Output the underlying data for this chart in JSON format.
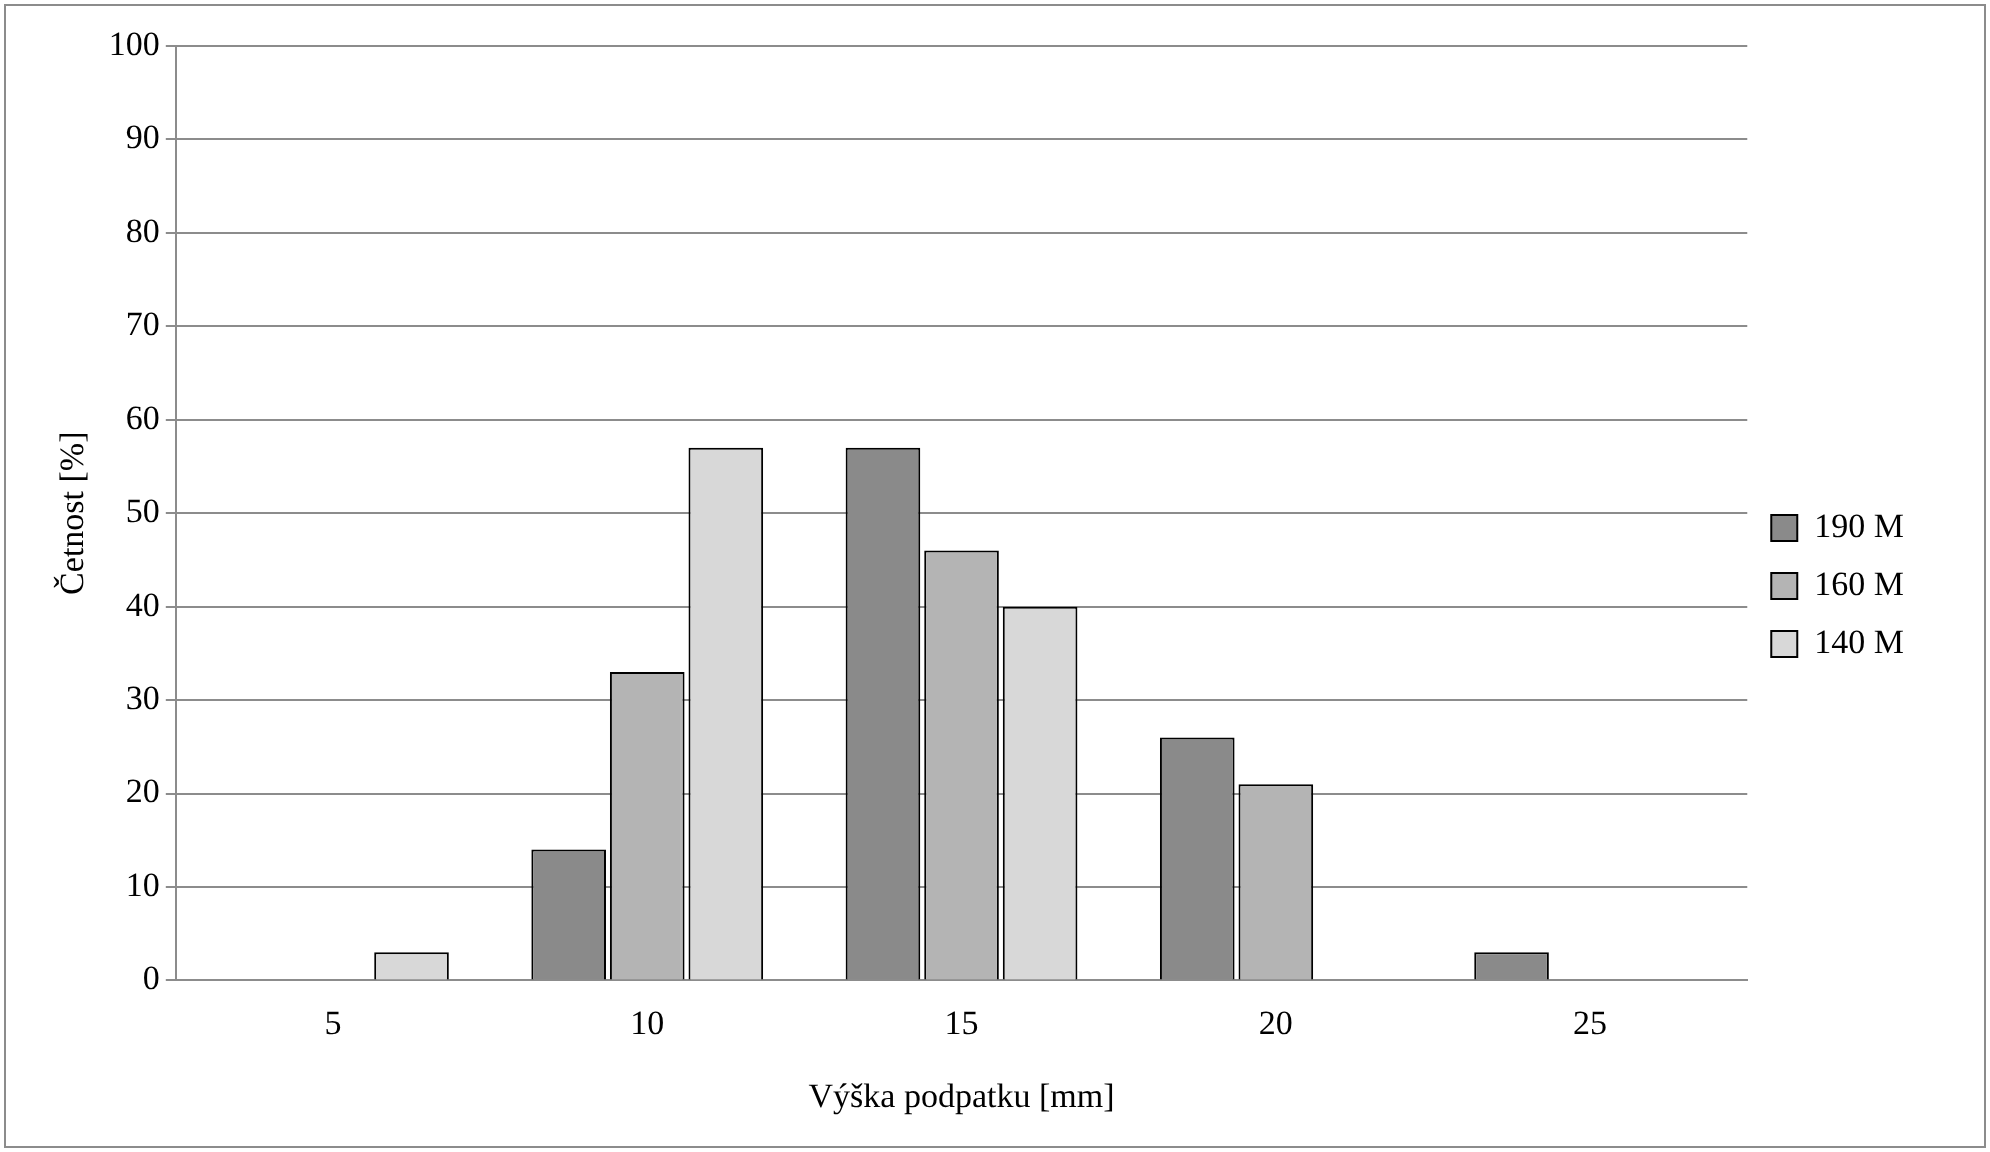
{
  "chart_data": {
    "type": "bar",
    "xlabel": "Výška podpatku [mm]",
    "ylabel": "Četnost [%]",
    "categories": [
      "5",
      "10",
      "15",
      "20",
      "25"
    ],
    "series": [
      {
        "name": "190 M",
        "color": "#8a8a8a",
        "values": [
          0,
          14,
          57,
          26,
          3
        ]
      },
      {
        "name": "160 M",
        "color": "#b4b4b4",
        "values": [
          0,
          33,
          46,
          21,
          0
        ]
      },
      {
        "name": "140 M",
        "color": "#d8d8d8",
        "values": [
          3,
          57,
          40,
          0,
          0
        ]
      }
    ],
    "ylim": [
      0,
      100
    ],
    "yticks": [
      0,
      10,
      20,
      30,
      40,
      50,
      60,
      70,
      80,
      90,
      100
    ],
    "grid": "y",
    "legend": "right"
  }
}
